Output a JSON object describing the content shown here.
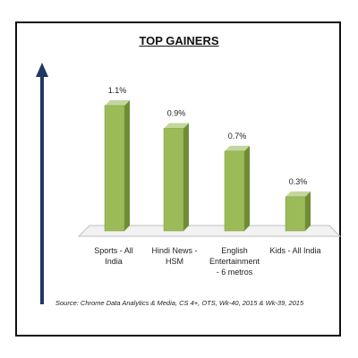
{
  "chart_data": {
    "type": "bar",
    "title": "TOP GAINERS",
    "categories": [
      [
        "Sports - All",
        "India"
      ],
      [
        "Hindi News -",
        "HSM"
      ],
      [
        "English",
        "Entertainment",
        "- 6 metros"
      ],
      [
        "Kids - All India"
      ]
    ],
    "values": [
      1.1,
      0.9,
      0.7,
      0.3
    ],
    "value_labels": [
      "1.1%",
      "0.9%",
      "0.7%",
      "0.3%"
    ],
    "ylim": [
      0,
      1.1
    ],
    "source": "Source: Chrome Data Analytics & Media, CS 4+, OTS, Wk-40, 2015 & Wk-39, 2015"
  },
  "colors": {
    "bar_front": "#9bbb59",
    "bar_side": "#6f8c35",
    "bar_top": "#c3d69b",
    "arrow": "#1f3864",
    "floor": "#f2f2f2"
  }
}
